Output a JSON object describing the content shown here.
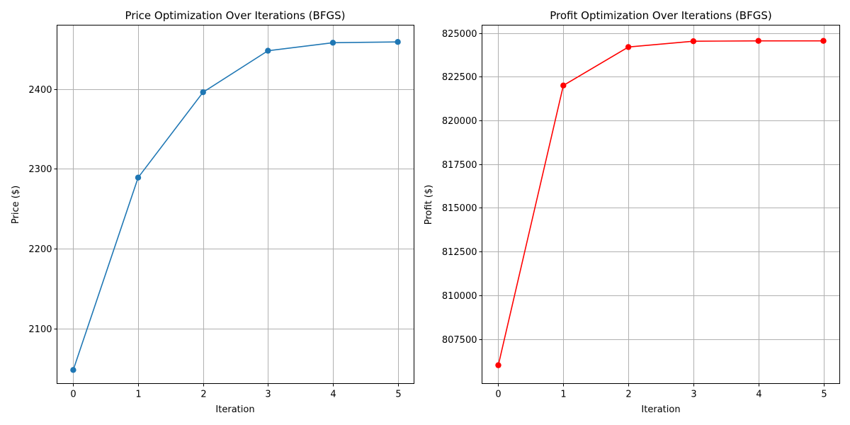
{
  "chart_data": [
    {
      "type": "line",
      "title": "Price Optimization Over Iterations (BFGS)",
      "xlabel": "Iteration",
      "ylabel": "Price ($)",
      "x": [
        0,
        1,
        2,
        3,
        4,
        5
      ],
      "xticks": [
        "0",
        "1",
        "2",
        "3",
        "4",
        "5"
      ],
      "xlim": [
        -0.25,
        5.25
      ],
      "yticks": [
        2100,
        2200,
        2300,
        2400
      ],
      "ylim": [
        2031,
        2480
      ],
      "grid": true,
      "series": [
        {
          "values": [
            2048,
            2289,
            2396,
            2448,
            2458,
            2459
          ],
          "color": "#1f77b4",
          "marker": "circle"
        }
      ]
    },
    {
      "type": "line",
      "title": "Profit Optimization Over Iterations (BFGS)",
      "xlabel": "Iteration",
      "ylabel": "Profit ($)",
      "x": [
        0,
        1,
        2,
        3,
        4,
        5
      ],
      "xticks": [
        "0",
        "1",
        "2",
        "3",
        "4",
        "5"
      ],
      "xlim": [
        -0.25,
        5.25
      ],
      "yticks": [
        807500,
        810000,
        812500,
        815000,
        817500,
        820000,
        822500,
        825000
      ],
      "ylim": [
        804950,
        825450
      ],
      "grid": true,
      "series": [
        {
          "values": [
            806000,
            822000,
            824200,
            824530,
            824550,
            824550
          ],
          "color": "#ff0000",
          "marker": "circle"
        }
      ]
    }
  ]
}
